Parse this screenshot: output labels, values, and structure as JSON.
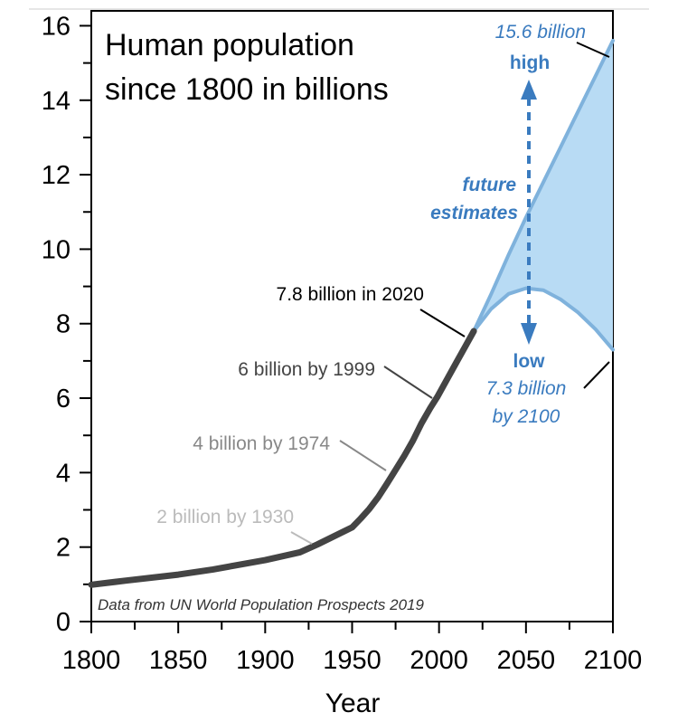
{
  "chart_data": {
    "type": "line",
    "title_line1": "Human population",
    "title_line2": "since 1800 in billions",
    "xlabel": "Year",
    "ylabel": "",
    "xlim": [
      1800,
      2100
    ],
    "ylim": [
      0,
      16.4
    ],
    "x_ticks": [
      1800,
      1850,
      1900,
      1950,
      2000,
      2050,
      2100
    ],
    "y_ticks": [
      0,
      2,
      4,
      6,
      8,
      10,
      12,
      14,
      16
    ],
    "source": "Data from UN World Population Prospects 2019",
    "historical": {
      "x": [
        1800,
        1820,
        1850,
        1870,
        1900,
        1920,
        1930,
        1940,
        1950,
        1955,
        1960,
        1965,
        1970,
        1974,
        1980,
        1985,
        1990,
        1995,
        1999,
        2005,
        2010,
        2015,
        2020
      ],
      "y": [
        0.99,
        1.1,
        1.26,
        1.4,
        1.65,
        1.86,
        2.07,
        2.3,
        2.53,
        2.77,
        3.03,
        3.34,
        3.7,
        4.0,
        4.45,
        4.86,
        5.33,
        5.74,
        6.03,
        6.54,
        6.96,
        7.38,
        7.8
      ]
    },
    "projection_high": {
      "x": [
        2020,
        2030,
        2040,
        2050,
        2060,
        2070,
        2080,
        2090,
        2100
      ],
      "y": [
        7.8,
        8.8,
        9.85,
        10.85,
        11.8,
        12.75,
        13.7,
        14.65,
        15.6
      ]
    },
    "projection_low": {
      "x": [
        2020,
        2030,
        2040,
        2050,
        2060,
        2070,
        2080,
        2090,
        2100
      ],
      "y": [
        7.8,
        8.4,
        8.8,
        8.95,
        8.9,
        8.65,
        8.3,
        7.85,
        7.3
      ]
    },
    "annotations": {
      "label_2020": "7.8 billion in 2020",
      "label_1999": "6 billion by 1999",
      "label_1974": "4 billion by 1974",
      "label_1930": "2 billion by 1930",
      "high_value": "15.6 billion",
      "high_word": "high",
      "future_1": "future",
      "future_2": "estimates",
      "low_word": "low",
      "low_value": "7.3 billion",
      "low_year": "by 2100"
    },
    "colors": {
      "line_dark": "#444444",
      "label_1974": "#888888",
      "label_1930": "#bbbbbb",
      "projection_line": "#7fb2dc",
      "projection_fill": "#b8dbf4",
      "projection_text": "#3a7bbf"
    }
  }
}
